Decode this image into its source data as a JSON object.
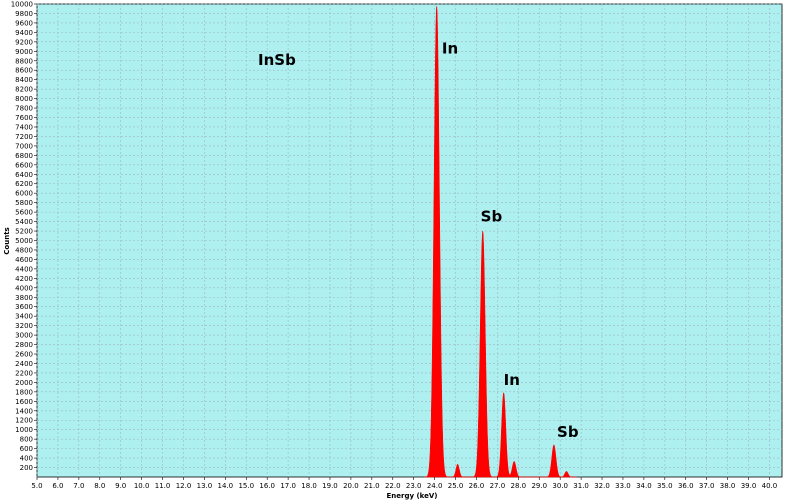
{
  "chart_data": {
    "type": "area",
    "title": "",
    "sample_label": "InSb",
    "xlabel": "Energy (keV)",
    "ylabel": "Counts",
    "xlim": [
      5.0,
      40.6
    ],
    "ylim": [
      0,
      10000
    ],
    "x_ticks": [
      5.0,
      6.0,
      7.0,
      8.0,
      9.0,
      10.0,
      11.0,
      12.0,
      13.0,
      14.0,
      15.0,
      16.0,
      17.0,
      18.0,
      19.0,
      20.0,
      21.0,
      22.0,
      23.0,
      24.0,
      25.0,
      26.0,
      27.0,
      28.0,
      29.0,
      30.0,
      31.0,
      32.0,
      33.0,
      34.0,
      35.0,
      36.0,
      37.0,
      38.0,
      39.0,
      40.0
    ],
    "y_ticks": [
      200,
      400,
      600,
      800,
      1000,
      1200,
      1400,
      1600,
      1800,
      2000,
      2200,
      2400,
      2600,
      2800,
      3000,
      3200,
      3400,
      3600,
      3800,
      4000,
      4200,
      4400,
      4600,
      4800,
      5000,
      5200,
      5400,
      5600,
      5800,
      6000,
      6200,
      6400,
      6600,
      6800,
      7000,
      7200,
      7400,
      7600,
      7800,
      8000,
      8200,
      8400,
      8600,
      8800,
      9000,
      9200,
      9400,
      9600,
      9800,
      10000
    ],
    "grid": true,
    "colors": {
      "plot_background": "#aef0f0",
      "series": "#ff0000",
      "grid": "#9ab6c0"
    },
    "peaks": [
      {
        "x": 24.1,
        "y": 9950,
        "width": 0.13
      },
      {
        "x": 25.1,
        "y": 270,
        "width": 0.08
      },
      {
        "x": 26.3,
        "y": 5200,
        "width": 0.12
      },
      {
        "x": 27.3,
        "y": 1780,
        "width": 0.1
      },
      {
        "x": 27.8,
        "y": 330,
        "width": 0.09
      },
      {
        "x": 29.7,
        "y": 680,
        "width": 0.1
      },
      {
        "x": 30.3,
        "y": 120,
        "width": 0.08
      }
    ],
    "annotations": [
      {
        "text": "In",
        "x": 24.35,
        "y": 8950
      },
      {
        "text": "Sb",
        "x": 26.2,
        "y": 5400
      },
      {
        "text": "In",
        "x": 27.3,
        "y": 1950
      },
      {
        "text": "Sb",
        "x": 29.85,
        "y": 850
      }
    ]
  }
}
